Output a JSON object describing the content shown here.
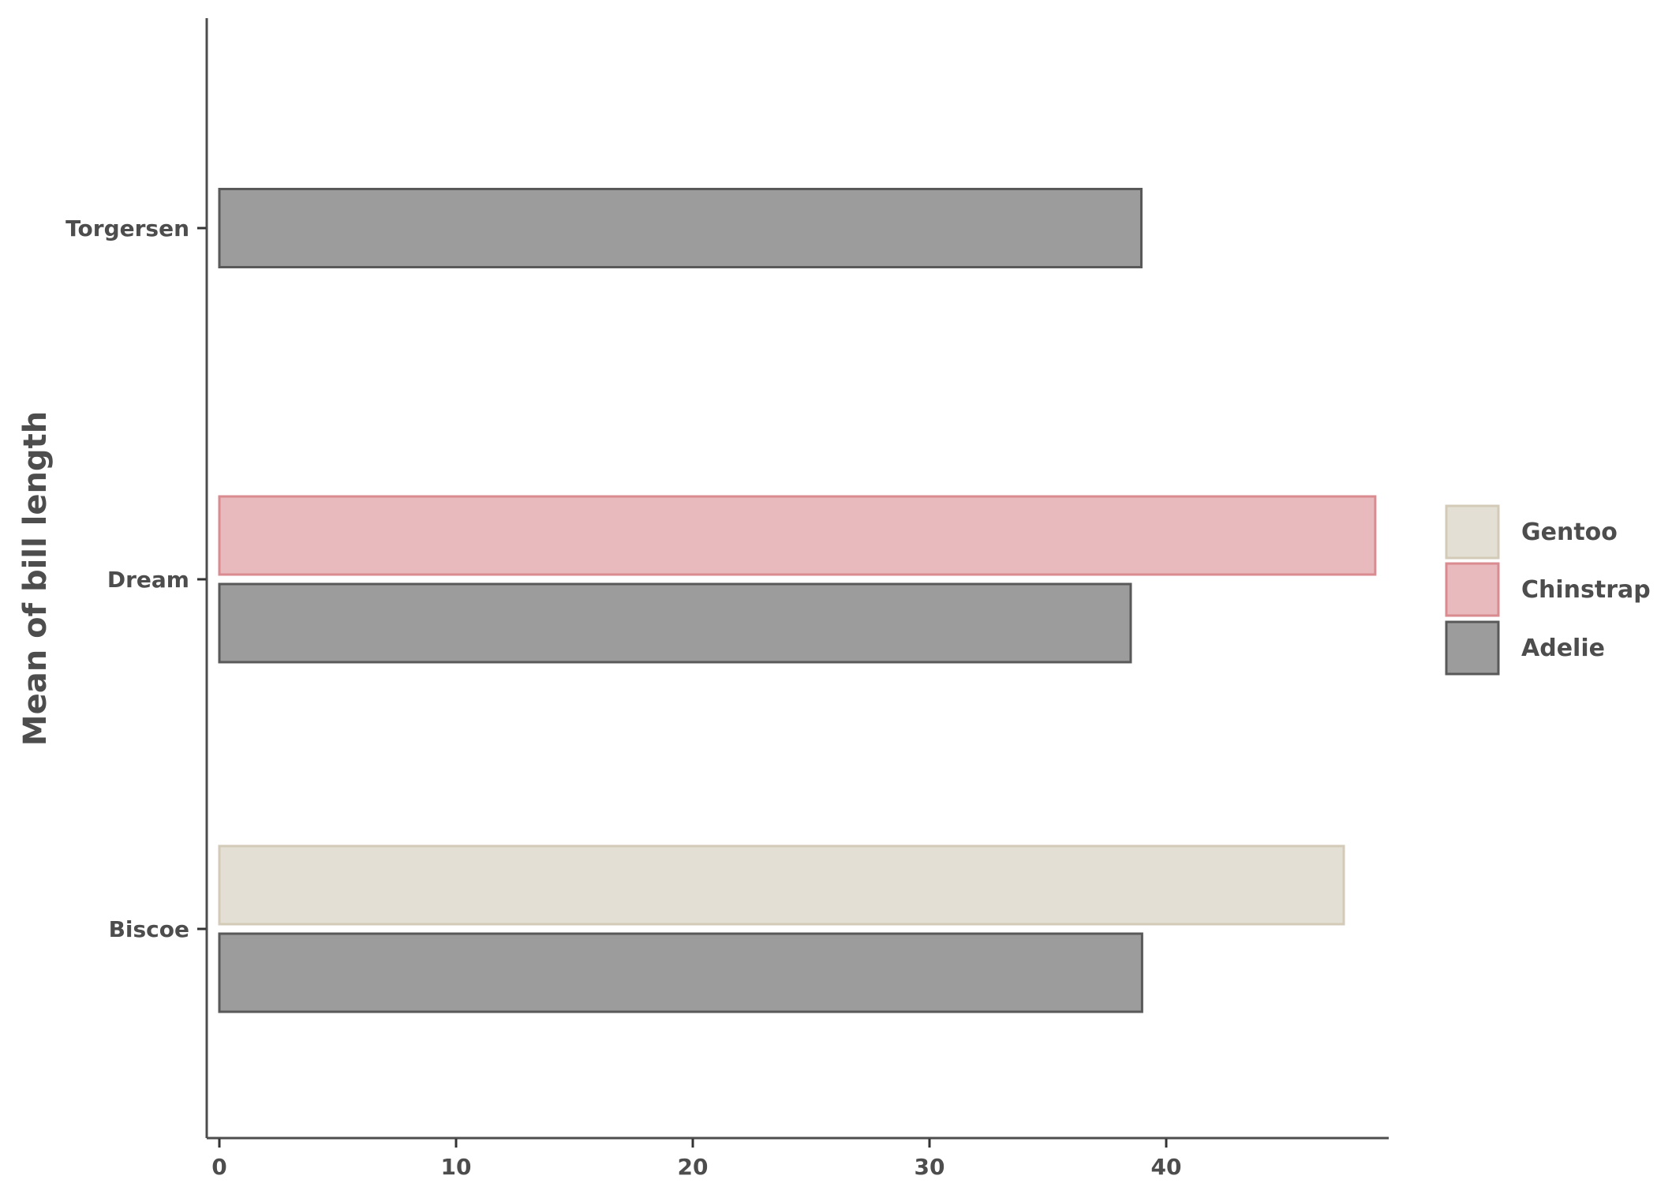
{
  "chart_data": {
    "type": "bar",
    "orientation": "horizontal",
    "title": "",
    "xlabel": "",
    "ylabel": "Mean of bill length",
    "categories": [
      "Biscoe",
      "Dream",
      "Torgersen"
    ],
    "xlim": [
      0,
      49
    ],
    "xticks": [
      0,
      10,
      20,
      30,
      40
    ],
    "grid": false,
    "legend_position": "right",
    "series": [
      {
        "name": "Adelie",
        "fill": "#9c9c9c",
        "stroke": "#595959",
        "values": [
          38.98,
          38.5,
          38.95
        ]
      },
      {
        "name": "Chinstrap",
        "fill": "#e8babd",
        "stroke": "#d98b90",
        "values": [
          null,
          48.83,
          null
        ]
      },
      {
        "name": "Gentoo",
        "fill": "#e3dfd4",
        "stroke": "#d3cbb8",
        "values": [
          47.5,
          null,
          null
        ]
      }
    ],
    "legend_order": [
      "Gentoo",
      "Chinstrap",
      "Adelie"
    ]
  }
}
